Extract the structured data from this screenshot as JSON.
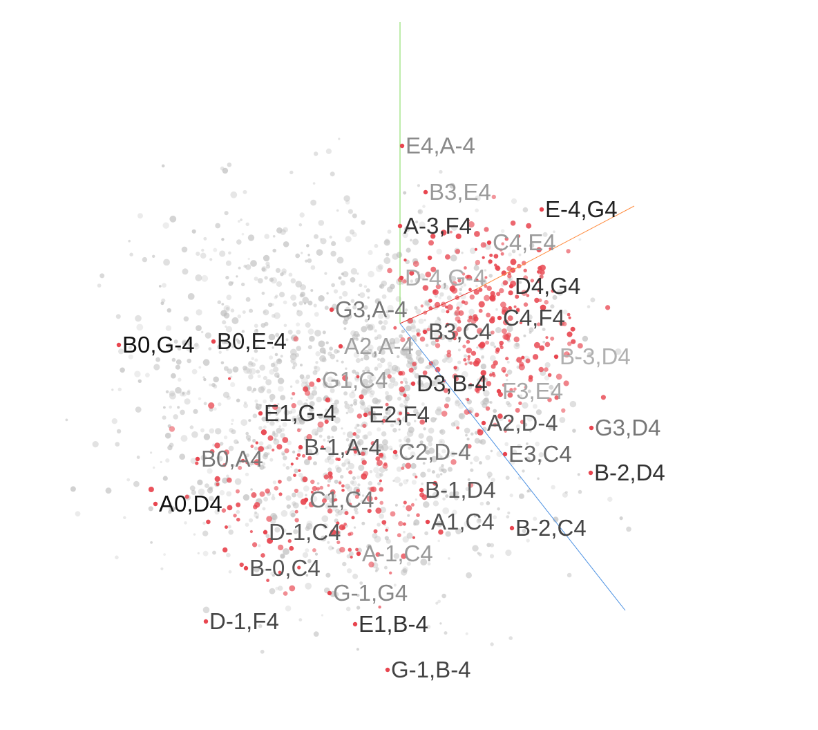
{
  "chart_data": {
    "type": "scatter",
    "view": "3d-projection",
    "title": "",
    "axes_colors": {
      "x": "#ff8a3c",
      "y": "#7ed957",
      "z": "#4a90e2",
      "x_near": "#e53935"
    },
    "colors": {
      "highlight": "#e8454f",
      "background": "#bdbdbd"
    },
    "background_point_count": 1400,
    "highlight_point_count": 460,
    "labeled_points": [
      {
        "label": "E4,A-4",
        "shade": "#8a8a8a"
      },
      {
        "label": "B3,E4",
        "shade": "#999999"
      },
      {
        "label": "E-4,G4",
        "shade": "#222222"
      },
      {
        "label": "A-3,F4",
        "shade": "#333333"
      },
      {
        "label": "C4,E4",
        "shade": "#9a9a9a"
      },
      {
        "label": "D-4,G-4",
        "shade": "#aaaaaa"
      },
      {
        "label": "D4,G4",
        "shade": "#333333"
      },
      {
        "label": "G3,A-4",
        "shade": "#777777"
      },
      {
        "label": "C4,F4",
        "shade": "#444444"
      },
      {
        "label": "B3,C4",
        "shade": "#555555"
      },
      {
        "label": "B0,G-4",
        "shade": "#111111"
      },
      {
        "label": "B0,E-4",
        "shade": "#222222"
      },
      {
        "label": "A2,A-4",
        "shade": "#a0a0a0"
      },
      {
        "label": "B-3,D4",
        "shade": "#b0b0b0"
      },
      {
        "label": "G1,C4",
        "shade": "#9a9a9a"
      },
      {
        "label": "D3,B-4",
        "shade": "#333333"
      },
      {
        "label": "F3,E4",
        "shade": "#a8a8a8"
      },
      {
        "label": "E1,G-4",
        "shade": "#333333"
      },
      {
        "label": "E2,F4",
        "shade": "#444444"
      },
      {
        "label": "A2,D-4",
        "shade": "#555555"
      },
      {
        "label": "G3,D4",
        "shade": "#777777"
      },
      {
        "label": "B-1,A-4",
        "shade": "#555555"
      },
      {
        "label": "C2,D-4",
        "shade": "#777777"
      },
      {
        "label": "E3,C4",
        "shade": "#666666"
      },
      {
        "label": "B0,A4",
        "shade": "#777777"
      },
      {
        "label": "B-2,D4",
        "shade": "#333333"
      },
      {
        "label": "B-1,D4",
        "shade": "#555555"
      },
      {
        "label": "A0,D4",
        "shade": "#111111"
      },
      {
        "label": "C1,C4",
        "shade": "#777777"
      },
      {
        "label": "A1,C4",
        "shade": "#555555"
      },
      {
        "label": "B-2,C4",
        "shade": "#444444"
      },
      {
        "label": "D-1,C4",
        "shade": "#555555"
      },
      {
        "label": "A-1,C4",
        "shade": "#999999"
      },
      {
        "label": "B-0,C4",
        "shade": "#555555"
      },
      {
        "label": "G-1,G4",
        "shade": "#888888"
      },
      {
        "label": "D-1,F4",
        "shade": "#444444"
      },
      {
        "label": "E1,B-4",
        "shade": "#333333"
      },
      {
        "label": "G-1,B-4",
        "shade": "#444444"
      }
    ]
  }
}
